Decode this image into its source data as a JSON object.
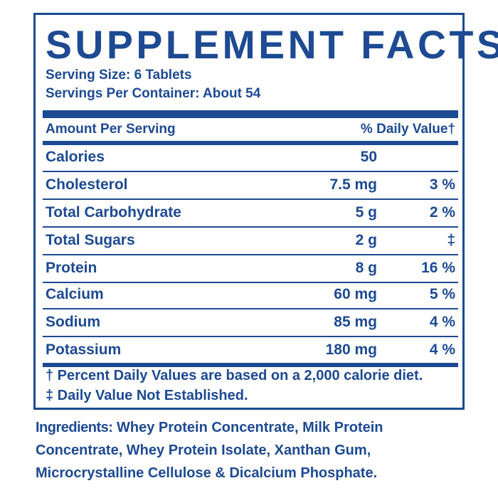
{
  "facts": {
    "title": "SUPPLEMENT FACTS",
    "serving_size": "Serving Size: 6 Tablets",
    "servings_per_container": "Servings Per Container: About 54",
    "header_left": "Amount Per Serving",
    "header_right": "% Daily Value†",
    "rows": [
      {
        "name": "Calories",
        "amount": "50",
        "dv": ""
      },
      {
        "name": "Cholesterol",
        "amount": "7.5 mg",
        "dv": "3 %"
      },
      {
        "name": "Total Carbohydrate",
        "amount": "5 g",
        "dv": "2 %"
      },
      {
        "name": "Total Sugars",
        "amount": "2 g",
        "dv": "‡"
      },
      {
        "name": "Protein",
        "amount": "8 g",
        "dv": "16 %"
      },
      {
        "name": "Calcium",
        "amount": "60 mg",
        "dv": "5 %"
      },
      {
        "name": "Sodium",
        "amount": "85 mg",
        "dv": "4 %"
      },
      {
        "name": "Potassium",
        "amount": "180 mg",
        "dv": "4 %"
      }
    ],
    "footnote_1": "† Percent Daily Values are based on a 2,000 calorie diet.",
    "footnote_2": "‡ Daily Value Not Established."
  },
  "ingredients": {
    "label": "Ingredients:",
    "text": " Whey Protein Concentrate, Milk Protein Concentrate, Whey Protein Isolate, Xanthan Gum, Microcrystalline Cellulose & Dicalcium Phosphate."
  },
  "colors": {
    "primary": "#1d4a92",
    "background": "#ffffff"
  }
}
